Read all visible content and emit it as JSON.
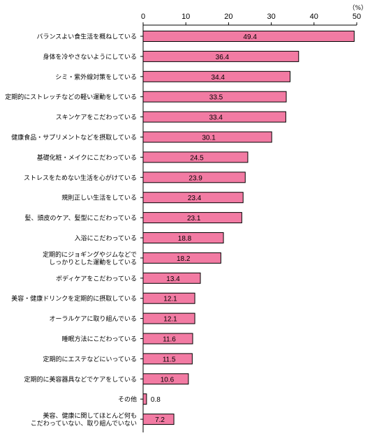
{
  "chart_data": {
    "type": "bar",
    "orientation": "horizontal",
    "unit": "（%）",
    "xlim": [
      0,
      50
    ],
    "ticks": [
      "0",
      "10",
      "20",
      "30",
      "40",
      "50"
    ],
    "grid": false,
    "bar_color": "#F27BA3",
    "bar_edge_color": "#000000",
    "categories": [
      [
        "バランスよい食生活を概ねしている"
      ],
      [
        "身体を冷やさないようにしている"
      ],
      [
        "シミ・紫外線対策をしている"
      ],
      [
        "定期的にストレッチなどの軽い運動をしている"
      ],
      [
        "スキンケアをこだわっている"
      ],
      [
        "健康食品・サプリメントなどを摂取している"
      ],
      [
        "基礎化粧・メイクにこだわっている"
      ],
      [
        "ストレスをためない生活を心がけている"
      ],
      [
        "規則正しい生活をしている"
      ],
      [
        "髪、頭皮のケア、髪型にこだわっている"
      ],
      [
        "入浴にこだわっている"
      ],
      [
        "定期的にジョギングやジムなどで",
        "しっかりとした運動をしている"
      ],
      [
        "ボディケアをこだわっている"
      ],
      [
        "美容・健康ドリンクを定期的に摂取している"
      ],
      [
        "オーラルケアに取り組んでいる"
      ],
      [
        "睡眠方法にこだわっている"
      ],
      [
        "定期的にエステなどにいっている"
      ],
      [
        "定期的に美容器具などでケアをしている"
      ],
      [
        "その他"
      ],
      [
        "美容、健康に関してほとんど何も",
        "こだわっていない、取り組んでいない"
      ]
    ],
    "values": [
      49.4,
      36.4,
      34.4,
      33.5,
      33.4,
      30.1,
      24.5,
      23.9,
      23.4,
      23.1,
      18.8,
      18.2,
      13.4,
      12.1,
      12.1,
      11.6,
      11.5,
      10.6,
      0.8,
      7.2
    ],
    "value_labels": [
      "49.4",
      "36.4",
      "34.4",
      "33.5",
      "33.4",
      "30.1",
      "24.5",
      "23.9",
      "23.4",
      "23.1",
      "18.8",
      "18.2",
      "13.4",
      "12.1",
      "12.1",
      "11.6",
      "11.5",
      "10.6",
      "0.8",
      "7.2"
    ]
  }
}
